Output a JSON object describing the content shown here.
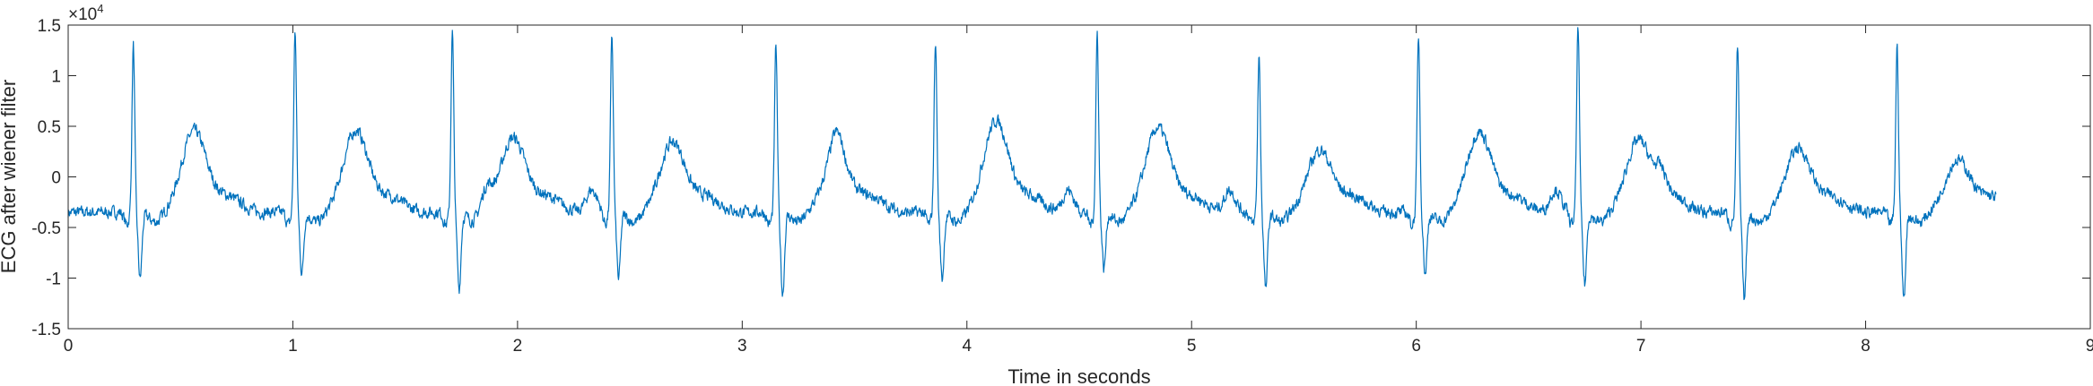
{
  "chart_data": {
    "type": "line",
    "xlabel": "Time in seconds",
    "ylabel": "ECG after wiener filter",
    "y_exponent_prefix": "×10",
    "y_exponent_power": "4",
    "xlim": [
      0,
      9
    ],
    "ylim": [
      -15000,
      15000
    ],
    "x_ticks": [
      0,
      1,
      2,
      3,
      4,
      5,
      6,
      7,
      8,
      9
    ],
    "x_tick_labels": [
      "0",
      "1",
      "2",
      "3",
      "4",
      "5",
      "6",
      "7",
      "8",
      "9"
    ],
    "y_ticks": [
      -15000,
      -10000,
      -5000,
      0,
      5000,
      10000,
      15000
    ],
    "y_tick_labels": [
      "-1.5",
      "-1",
      "-0.5",
      "0",
      "0.5",
      "1",
      "1.5"
    ],
    "grid": false,
    "line_color": "#0072BD",
    "series": [
      {
        "x_start": 0,
        "x_end": 8.58,
        "baseline": -3500,
        "beats": [
          {
            "r": 0.29,
            "r_amp": 13000,
            "s_amp": -10000,
            "t_amp": 4500
          },
          {
            "r": 1.01,
            "r_amp": 14500,
            "s_amp": -9500,
            "t_amp": 4500
          },
          {
            "r": 1.71,
            "r_amp": 14300,
            "s_amp": -11000,
            "t_amp": 3800
          },
          {
            "r": 2.42,
            "r_amp": 14000,
            "s_amp": -10000,
            "t_amp": 3400
          },
          {
            "r": 3.15,
            "r_amp": 13000,
            "s_amp": -11500,
            "t_amp": 2200
          },
          {
            "r": 3.86,
            "r_amp": 13500,
            "s_amp": -10000,
            "t_amp": 5500
          },
          {
            "r": 4.58,
            "r_amp": 14200,
            "s_amp": -9000,
            "t_amp": 4800
          },
          {
            "r": 5.3,
            "r_amp": 12000,
            "s_amp": -11000,
            "t_amp": 2600
          },
          {
            "r": 6.01,
            "r_amp": 14000,
            "s_amp": -9500,
            "t_amp": 4400
          },
          {
            "r": 6.72,
            "r_amp": 15000,
            "s_amp": -10500,
            "t_amp": 3600
          },
          {
            "r": 7.43,
            "r_amp": 12800,
            "s_amp": -12000,
            "t_amp": 2800
          },
          {
            "r": 8.14,
            "r_amp": 12800,
            "s_amp": -12000,
            "t_amp": 1600
          }
        ],
        "p_waves": [
          1.86,
          2.33,
          3.42,
          4.45,
          5.17,
          6.62,
          7.09
        ]
      }
    ]
  }
}
